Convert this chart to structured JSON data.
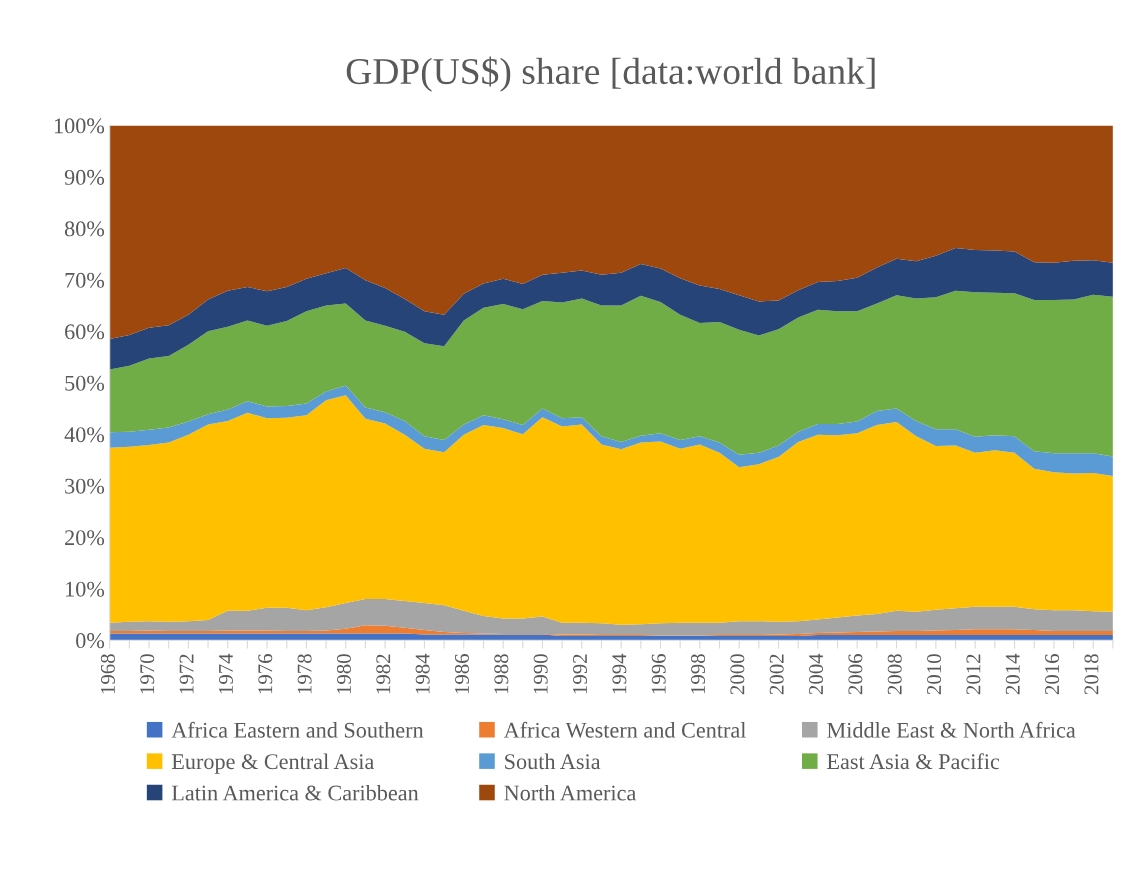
{
  "chart_data": {
    "type": "area",
    "title": "GDP(US$) share [data:world bank]",
    "stacked": true,
    "legend": "bottom",
    "grid": false,
    "categories": [
      "1968",
      null,
      "1970",
      null,
      "1972",
      null,
      "1974",
      null,
      "1976",
      null,
      "1978",
      null,
      "1980",
      null,
      "1982",
      null,
      "1984",
      null,
      "1986",
      null,
      "1988",
      null,
      "1990",
      null,
      "1992",
      null,
      "1994",
      null,
      "1996",
      null,
      "1998",
      null,
      "2000",
      null,
      "2002",
      null,
      "2004",
      null,
      "2006",
      null,
      "2008",
      null,
      "2010",
      null,
      "2012",
      null,
      "2014",
      null,
      "2016",
      null,
      "2018",
      null
    ],
    "ylim": [
      0,
      100
    ],
    "yticks": [
      {
        "value": 0,
        "label": "0%"
      },
      {
        "value": 10,
        "label": "10%"
      },
      {
        "value": 20,
        "label": "20%"
      },
      {
        "value": 30,
        "label": "30%"
      },
      {
        "value": 40,
        "label": "40%"
      },
      {
        "value": 50,
        "label": "50%"
      },
      {
        "value": 60,
        "label": "60%"
      },
      {
        "value": 70,
        "label": "70%"
      },
      {
        "value": 80,
        "label": "80%"
      },
      {
        "value": 90,
        "label": "90%"
      },
      {
        "value": 100,
        "label": "100%"
      }
    ],
    "series": [
      {
        "name": "Africa Eastern and Southern",
        "color": "#4472c4",
        "values": [
          1.3,
          1.3,
          1.3,
          1.3,
          1.3,
          1.3,
          1.3,
          1.3,
          1.3,
          1.3,
          1.3,
          1.3,
          1.3,
          1.3,
          1.3,
          1.3,
          1.1,
          1.1,
          1.1,
          1.1,
          1.1,
          1.1,
          1.1,
          0.8,
          0.8,
          0.8,
          0.8,
          0.8,
          0.8,
          0.8,
          0.8,
          0.8,
          0.8,
          0.8,
          0.8,
          0.8,
          1.0,
          1.0,
          1.0,
          1.0,
          1.0,
          1.0,
          1.0,
          1.0,
          1.0,
          1.0,
          1.0,
          1.0,
          1.0,
          1.0,
          1.0,
          1.0
        ]
      },
      {
        "name": "Africa Western and Central",
        "color": "#ed7d31",
        "values": [
          0.5,
          0.5,
          0.6,
          0.5,
          0.5,
          0.5,
          0.6,
          0.6,
          0.6,
          0.5,
          0.5,
          0.6,
          0.9,
          1.6,
          1.5,
          1.1,
          0.9,
          0.5,
          0.3,
          0.2,
          0.1,
          0.1,
          0.1,
          0.3,
          0.3,
          0.2,
          0.2,
          0.2,
          0.1,
          0.1,
          0.1,
          0.2,
          0.2,
          0.2,
          0.3,
          0.4,
          0.4,
          0.5,
          0.6,
          0.7,
          0.8,
          0.8,
          0.9,
          1.0,
          1.1,
          1.1,
          1.1,
          1.0,
          0.8,
          0.8,
          0.8,
          0.8
        ]
      },
      {
        "name": "Middle East & North Africa",
        "color": "#a5a5a5",
        "values": [
          1.6,
          1.8,
          1.8,
          1.8,
          1.9,
          2.1,
          3.8,
          3.8,
          4.4,
          4.5,
          4.0,
          4.5,
          5.0,
          5.1,
          5.2,
          5.2,
          5.2,
          5.2,
          4.3,
          3.4,
          3.0,
          3.0,
          3.4,
          2.3,
          2.3,
          2.3,
          2.0,
          2.1,
          2.4,
          2.5,
          2.5,
          2.4,
          2.7,
          2.7,
          2.5,
          2.5,
          2.6,
          2.9,
          3.2,
          3.4,
          3.9,
          3.7,
          4.0,
          4.2,
          4.4,
          4.4,
          4.4,
          4.0,
          4.0,
          4.0,
          3.8,
          3.7
        ]
      },
      {
        "name": "Europe & Central Asia",
        "color": "#ffc000",
        "values": [
          34.0,
          34.0,
          34.2,
          34.8,
          36.2,
          38.0,
          36.9,
          38.5,
          36.8,
          36.9,
          37.9,
          40.2,
          40.4,
          35.0,
          34.1,
          32.3,
          30.0,
          29.7,
          34.2,
          37.1,
          37.0,
          35.8,
          38.7,
          38.1,
          38.5,
          34.7,
          34.1,
          35.3,
          35.3,
          33.8,
          34.6,
          33.0,
          29.9,
          30.5,
          32.0,
          34.8,
          35.9,
          35.4,
          35.4,
          36.7,
          36.7,
          34.1,
          31.8,
          31.6,
          29.9,
          30.4,
          29.9,
          27.3,
          26.8,
          26.6,
          26.9,
          26.4
        ]
      },
      {
        "name": "South Asia",
        "color": "#5b9bd5",
        "values": [
          3.0,
          2.9,
          3.0,
          2.9,
          2.6,
          2.0,
          2.2,
          2.2,
          2.3,
          2.3,
          2.3,
          1.7,
          1.9,
          2.2,
          2.2,
          2.7,
          2.4,
          2.4,
          2.0,
          1.9,
          1.7,
          1.8,
          1.7,
          1.6,
          1.4,
          1.6,
          1.4,
          1.3,
          1.6,
          1.7,
          1.6,
          2.0,
          2.4,
          2.2,
          2.2,
          2.0,
          2.1,
          2.2,
          2.3,
          2.7,
          2.6,
          3.0,
          3.3,
          3.2,
          3.1,
          2.9,
          3.2,
          3.4,
          3.7,
          3.9,
          3.8,
          3.8
        ]
      },
      {
        "name": "East Asia & Pacific",
        "color": "#70ad47",
        "values": [
          12.2,
          12.8,
          13.8,
          13.9,
          14.9,
          16.1,
          16.1,
          15.7,
          15.7,
          16.5,
          17.9,
          16.7,
          15.9,
          16.9,
          16.8,
          17.3,
          18.1,
          18.2,
          20.2,
          20.9,
          22.4,
          22.5,
          20.9,
          22.5,
          23.1,
          25.4,
          26.5,
          27.2,
          25.5,
          24.3,
          22.0,
          23.4,
          24.3,
          22.8,
          22.6,
          22.2,
          22.2,
          21.9,
          21.4,
          20.9,
          22.0,
          23.8,
          25.6,
          26.9,
          28.1,
          27.7,
          27.8,
          29.4,
          29.8,
          29.9,
          30.8,
          31.0
        ]
      },
      {
        "name": "Latin America & Caribbean",
        "color": "#264478",
        "values": [
          5.9,
          6.0,
          6.0,
          6.0,
          5.8,
          6.2,
          7.0,
          6.5,
          6.7,
          6.6,
          6.3,
          6.3,
          6.9,
          7.8,
          7.3,
          6.4,
          6.2,
          6.1,
          5.2,
          4.7,
          4.9,
          4.9,
          5.1,
          5.8,
          5.4,
          6.0,
          6.4,
          6.2,
          6.5,
          7.1,
          7.3,
          6.4,
          6.7,
          6.6,
          5.6,
          5.3,
          5.4,
          5.9,
          6.5,
          7.0,
          7.1,
          7.2,
          8.1,
          8.3,
          8.2,
          8.2,
          8.1,
          7.3,
          7.2,
          7.5,
          6.7,
          6.6
        ]
      },
      {
        "name": "North America",
        "color": "#9e480e",
        "values": [
          41.5,
          40.7,
          39.3,
          38.8,
          36.8,
          33.8,
          32.1,
          31.4,
          32.2,
          31.4,
          29.8,
          28.7,
          27.7,
          30.1,
          31.6,
          33.7,
          36.1,
          36.8,
          32.7,
          30.7,
          29.8,
          30.8,
          29.0,
          28.6,
          28.2,
          29.0,
          28.6,
          26.9,
          27.8,
          29.7,
          31.1,
          31.8,
          33.0,
          34.2,
          34.0,
          32.0,
          30.4,
          30.2,
          29.6,
          27.6,
          25.9,
          26.4,
          25.3,
          23.8,
          24.2,
          24.3,
          24.5,
          26.6,
          26.7,
          26.3,
          26.2,
          26.7
        ]
      }
    ]
  }
}
